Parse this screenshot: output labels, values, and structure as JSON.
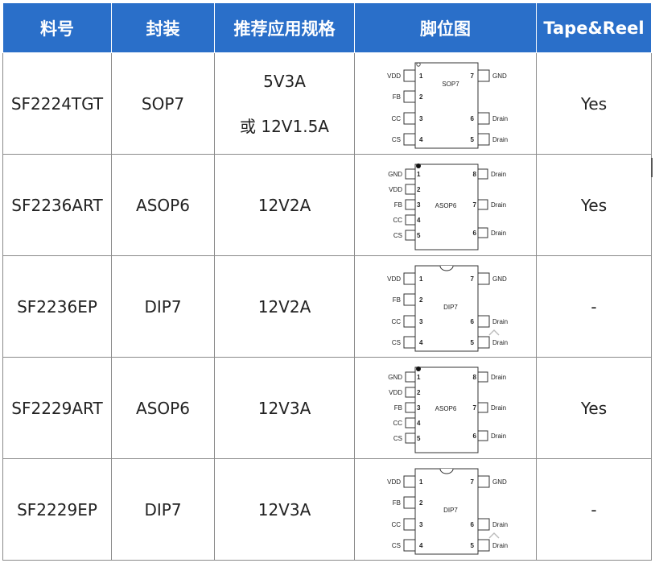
{
  "table": {
    "headers": [
      "料号",
      "封装",
      "推荐应用规格",
      "脚位图",
      "Tape&Reel"
    ],
    "rows": [
      {
        "part": "SF2224TGT",
        "package": "SOP7",
        "spec_lines": [
          "5V3A",
          "或 12V1.5A"
        ],
        "tape_reel": "Yes",
        "diagram": {
          "chip_label": "SOP7",
          "left_pins": [
            {
              "name": "VDD",
              "num": "1"
            },
            {
              "name": "FB",
              "num": "2"
            },
            {
              "name": "CC",
              "num": "3"
            },
            {
              "name": "CS",
              "num": "4"
            }
          ],
          "right_pins": [
            {
              "name": "GND",
              "num": "7"
            },
            {
              "name": "Drain",
              "num": "6"
            },
            {
              "name": "Drain",
              "num": "5"
            }
          ]
        }
      },
      {
        "part": "SF2236ART",
        "package": "ASOP6",
        "spec_lines": [
          "12V2A"
        ],
        "tape_reel": "Yes",
        "diagram": {
          "chip_label": "ASOP6",
          "left_pins": [
            {
              "name": "GND",
              "num": "1"
            },
            {
              "name": "VDD",
              "num": "2"
            },
            {
              "name": "FB",
              "num": "3"
            },
            {
              "name": "CC",
              "num": "4"
            },
            {
              "name": "CS",
              "num": "5"
            }
          ],
          "right_pins": [
            {
              "name": "Drain",
              "num": "8"
            },
            {
              "name": "Drain",
              "num": "7"
            },
            {
              "name": "Drain",
              "num": "6"
            }
          ]
        }
      },
      {
        "part": "SF2236EP",
        "package": "DIP7",
        "spec_lines": [
          "12V2A"
        ],
        "tape_reel": "-",
        "diagram": {
          "chip_label": "DIP7",
          "left_pins": [
            {
              "name": "VDD",
              "num": "1"
            },
            {
              "name": "FB",
              "num": "2"
            },
            {
              "name": "CC",
              "num": "3"
            },
            {
              "name": "CS",
              "num": "4"
            }
          ],
          "right_pins": [
            {
              "name": "GND",
              "num": "7"
            },
            {
              "name": "Drain",
              "num": "6"
            },
            {
              "name": "Drain",
              "num": "5"
            }
          ]
        }
      },
      {
        "part": "SF2229ART",
        "package": "ASOP6",
        "spec_lines": [
          "12V3A"
        ],
        "tape_reel": "Yes",
        "diagram": {
          "chip_label": "ASOP6",
          "left_pins": [
            {
              "name": "GND",
              "num": "1"
            },
            {
              "name": "VDD",
              "num": "2"
            },
            {
              "name": "FB",
              "num": "3"
            },
            {
              "name": "CC",
              "num": "4"
            },
            {
              "name": "CS",
              "num": "5"
            }
          ],
          "right_pins": [
            {
              "name": "Drain",
              "num": "8"
            },
            {
              "name": "Drain",
              "num": "7"
            },
            {
              "name": "Drain",
              "num": "6"
            }
          ]
        }
      },
      {
        "part": "SF2229EP",
        "package": "DIP7",
        "spec_lines": [
          "12V3A"
        ],
        "tape_reel": "-",
        "diagram": {
          "chip_label": "DIP7",
          "left_pins": [
            {
              "name": "VDD",
              "num": "1"
            },
            {
              "name": "FB",
              "num": "2"
            },
            {
              "name": "CC",
              "num": "3"
            },
            {
              "name": "CS",
              "num": "4"
            }
          ],
          "right_pins": [
            {
              "name": "GND",
              "num": "7"
            },
            {
              "name": "Drain",
              "num": "6"
            },
            {
              "name": "Drain",
              "num": "5"
            }
          ]
        }
      }
    ]
  },
  "colors": {
    "header_bg": "#2a6fc9",
    "header_text": "#ffffff",
    "grid": "#8a8a8a"
  }
}
